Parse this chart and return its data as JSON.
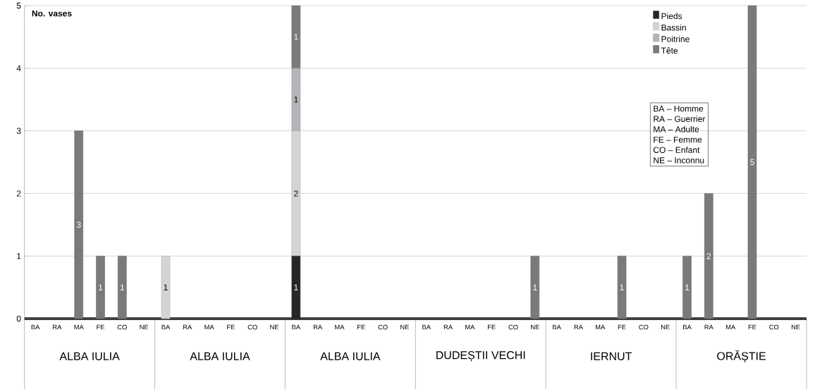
{
  "chart_data": {
    "type": "bar",
    "stacked": true,
    "ylabel": "No. vases",
    "categories": [
      "BA",
      "RA",
      "MA",
      "FE",
      "CO",
      "NE",
      "BA",
      "RA",
      "MA",
      "FE",
      "CO",
      "NE",
      "BA",
      "RA",
      "MA",
      "FE",
      "CO",
      "NE",
      "BA",
      "RA",
      "MA",
      "FE",
      "CO",
      "NE",
      "BA",
      "RA",
      "MA",
      "FE",
      "CO",
      "NE",
      "BA",
      "RA",
      "MA",
      "FE",
      "CO",
      "NE"
    ],
    "series": [
      {
        "name": "Pieds",
        "color": "#262626",
        "values": [
          null,
          null,
          null,
          null,
          null,
          null,
          null,
          null,
          null,
          null,
          null,
          null,
          1,
          null,
          null,
          null,
          null,
          null,
          null,
          null,
          null,
          null,
          null,
          null,
          null,
          null,
          null,
          null,
          null,
          null,
          null,
          null,
          null,
          null,
          null,
          null
        ]
      },
      {
        "name": "Bassin",
        "color": "#d4d4d4",
        "values": [
          null,
          null,
          null,
          null,
          null,
          null,
          1,
          null,
          null,
          null,
          null,
          null,
          2,
          null,
          null,
          null,
          null,
          null,
          null,
          null,
          null,
          null,
          null,
          null,
          null,
          null,
          null,
          null,
          null,
          null,
          null,
          null,
          null,
          null,
          null,
          null
        ]
      },
      {
        "name": "Poitrine",
        "color": "#b4b5b8",
        "values": [
          null,
          null,
          null,
          null,
          null,
          null,
          null,
          null,
          null,
          null,
          null,
          null,
          1,
          null,
          null,
          null,
          null,
          null,
          null,
          null,
          null,
          null,
          null,
          null,
          null,
          null,
          null,
          null,
          null,
          null,
          null,
          null,
          null,
          null,
          null,
          null
        ]
      },
      {
        "name": "Tête",
        "color": "#7a7a7a",
        "values": [
          null,
          null,
          3,
          1,
          1,
          null,
          null,
          null,
          null,
          null,
          null,
          null,
          1,
          null,
          null,
          null,
          null,
          null,
          null,
          null,
          null,
          null,
          null,
          1,
          null,
          null,
          null,
          1,
          null,
          null,
          1,
          2,
          null,
          5,
          null,
          null
        ]
      }
    ],
    "ylim": [
      0,
      5
    ],
    "yticks": [
      0,
      1,
      2,
      3,
      4,
      5
    ],
    "grid": "y",
    "legend": "top right",
    "data_labels": true,
    "annotations": [
      "ALBA IULIA",
      "ALBA IULIA",
      "ALBA IULIA",
      "DUDEȘTII VECHI",
      "IERNUT",
      "ORĂȘTIE",
      "BA – Homme",
      "RA – Guerrier",
      "MA – Adulte",
      "FE – Femme",
      "CO – Enfant",
      "NE – Inconnu"
    ]
  }
}
